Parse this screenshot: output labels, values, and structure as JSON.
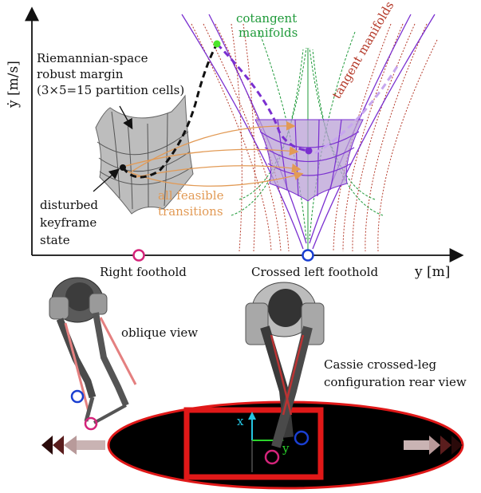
{
  "plot": {
    "y_axis_label": "ẏ [m/s]",
    "x_axis_label": "y [m]",
    "cotangent_label": [
      "cotangent",
      "manifolds"
    ],
    "tangent_label": "tangent manifolds",
    "robust_margin_label": [
      "Riemannian-space",
      "robust margin",
      "(3×5=15 partition cells)"
    ],
    "disturbed_label": [
      "disturbed",
      "keyframe",
      "state"
    ],
    "feasible_label": [
      "all feasible",
      "transitions"
    ],
    "right_foothold_label": "Right foothold",
    "left_foothold_label": "Crossed left foothold"
  },
  "robot": {
    "oblique_label": "oblique view",
    "rear_label": [
      "Cassie crossed-leg",
      "configuration rear view"
    ],
    "frame_x_label": "x",
    "frame_y_label": "y"
  },
  "colors": {
    "cotangent": "#1f9a3a",
    "tangent": "#b53a2a",
    "purple": "#7a2fd0",
    "feasible": "#e29a55",
    "magenta": "#d4247a",
    "blue": "#1a3fd1"
  }
}
